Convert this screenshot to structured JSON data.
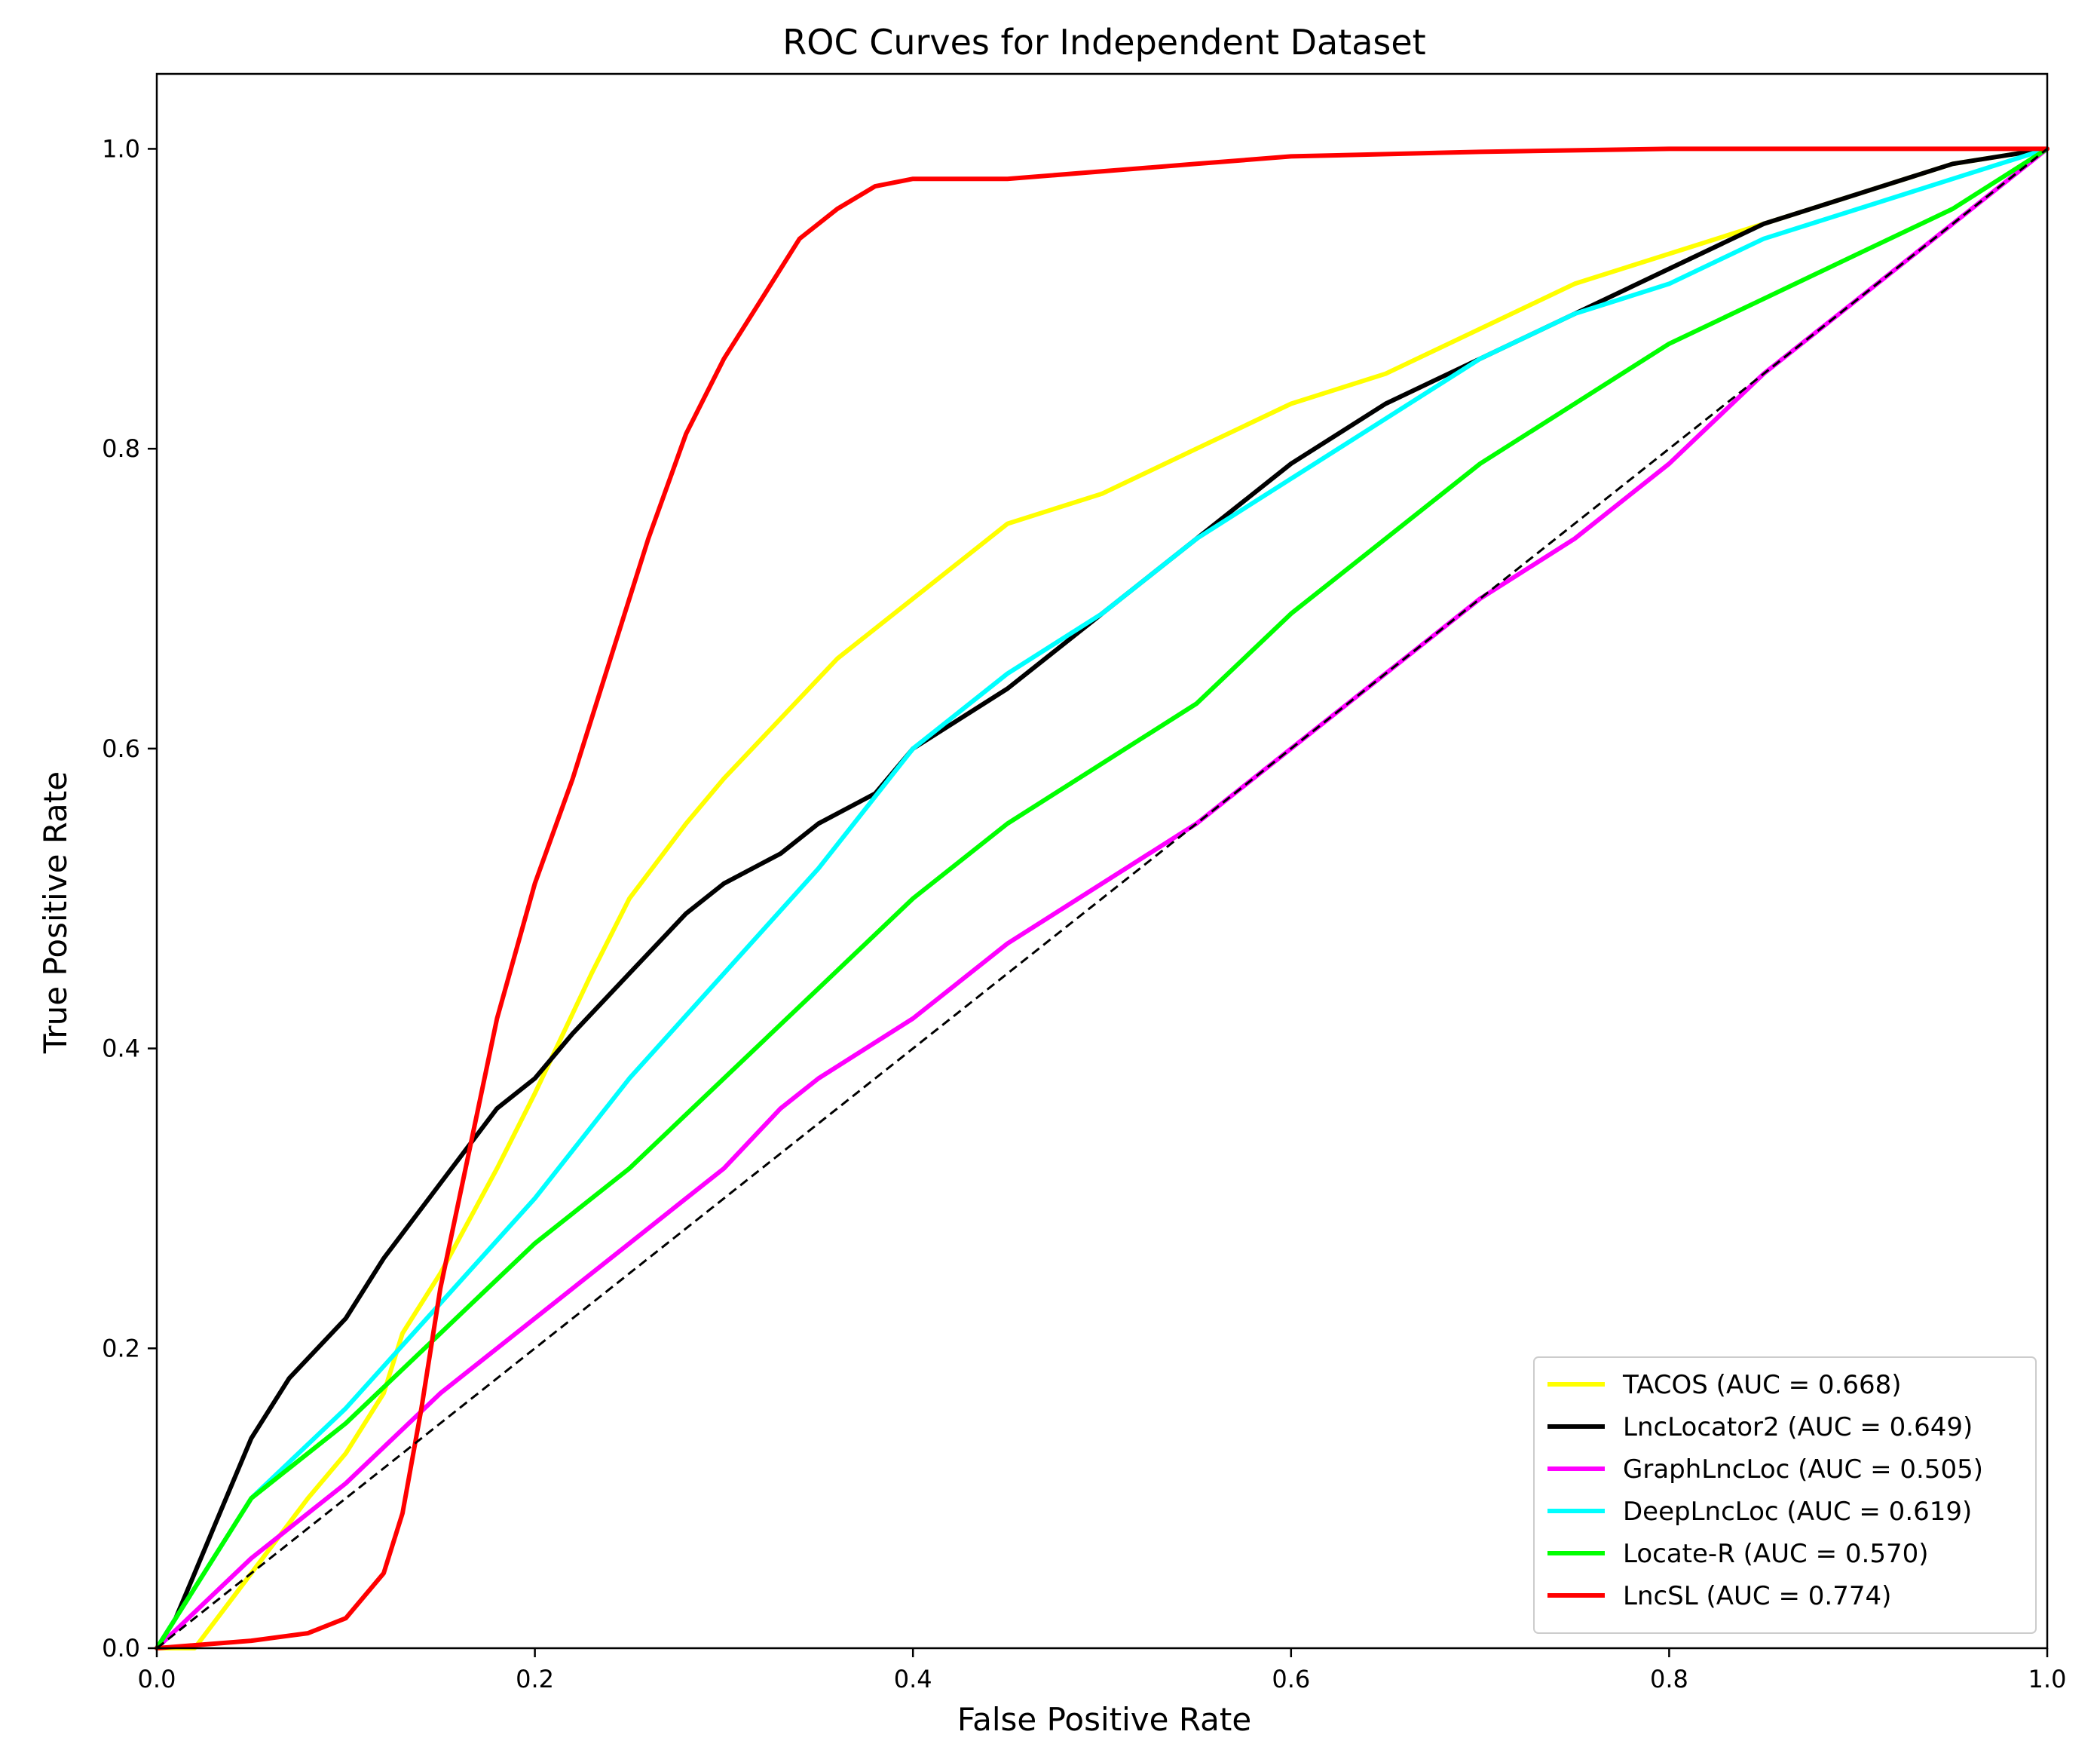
{
  "chart_data": {
    "type": "line",
    "title": "ROC Curves for Independent Dataset",
    "xlabel": "False Positive Rate",
    "ylabel": "True Positive Rate",
    "xlim": [
      0.0,
      1.0
    ],
    "ylim": [
      0.0,
      1.05
    ],
    "xticks": [
      "0.0",
      "0.2",
      "0.4",
      "0.6",
      "0.8",
      "1.0"
    ],
    "yticks": [
      "0.0",
      "0.2",
      "0.4",
      "0.6",
      "0.8",
      "1.0"
    ],
    "grid": false,
    "legend_position": "lower-right",
    "diagonal_reference": true,
    "series": [
      {
        "name": "TACOS (AUC = 0.668)",
        "color": "#ffff00",
        "x": [
          0,
          0.02,
          0.05,
          0.08,
          0.1,
          0.12,
          0.13,
          0.15,
          0.18,
          0.2,
          0.23,
          0.25,
          0.28,
          0.3,
          0.33,
          0.36,
          0.4,
          0.45,
          0.5,
          0.55,
          0.6,
          0.65,
          0.7,
          0.75,
          0.8,
          0.85,
          0.9,
          0.95,
          1.0
        ],
        "y": [
          0,
          0,
          0.05,
          0.1,
          0.13,
          0.17,
          0.21,
          0.25,
          0.32,
          0.37,
          0.45,
          0.5,
          0.55,
          0.58,
          0.62,
          0.66,
          0.7,
          0.75,
          0.77,
          0.8,
          0.83,
          0.85,
          0.88,
          0.91,
          0.93,
          0.95,
          0.97,
          0.99,
          1.0
        ]
      },
      {
        "name": "LncLocator2 (AUC = 0.649)",
        "color": "#000000",
        "x": [
          0,
          0.01,
          0.02,
          0.03,
          0.05,
          0.07,
          0.1,
          0.12,
          0.15,
          0.18,
          0.2,
          0.22,
          0.25,
          0.28,
          0.3,
          0.33,
          0.35,
          0.38,
          0.4,
          0.45,
          0.5,
          0.55,
          0.6,
          0.65,
          0.7,
          0.75,
          0.8,
          0.85,
          0.9,
          0.95,
          1.0
        ],
        "y": [
          0,
          0.02,
          0.05,
          0.08,
          0.14,
          0.18,
          0.22,
          0.26,
          0.31,
          0.36,
          0.38,
          0.41,
          0.45,
          0.49,
          0.51,
          0.53,
          0.55,
          0.57,
          0.6,
          0.64,
          0.69,
          0.74,
          0.79,
          0.83,
          0.86,
          0.89,
          0.92,
          0.95,
          0.97,
          0.99,
          1.0
        ]
      },
      {
        "name": "GraphLncLoc (AUC = 0.505)",
        "color": "#ff00ff",
        "x": [
          0,
          0.05,
          0.1,
          0.15,
          0.2,
          0.25,
          0.28,
          0.3,
          0.33,
          0.35,
          0.4,
          0.45,
          0.5,
          0.55,
          0.6,
          0.65,
          0.7,
          0.75,
          0.8,
          0.85,
          0.9,
          0.95,
          1.0
        ],
        "y": [
          0,
          0.06,
          0.11,
          0.17,
          0.22,
          0.27,
          0.3,
          0.32,
          0.36,
          0.38,
          0.42,
          0.47,
          0.51,
          0.55,
          0.6,
          0.65,
          0.7,
          0.74,
          0.79,
          0.85,
          0.9,
          0.95,
          1.0
        ]
      },
      {
        "name": "DeepLncLoc (AUC = 0.619)",
        "color": "#00ffff",
        "x": [
          0,
          0.05,
          0.1,
          0.15,
          0.2,
          0.25,
          0.3,
          0.35,
          0.4,
          0.45,
          0.5,
          0.55,
          0.6,
          0.65,
          0.7,
          0.75,
          0.8,
          0.85,
          0.9,
          0.95,
          1.0
        ],
        "y": [
          0,
          0.1,
          0.16,
          0.23,
          0.3,
          0.38,
          0.45,
          0.52,
          0.6,
          0.65,
          0.69,
          0.74,
          0.78,
          0.82,
          0.86,
          0.89,
          0.91,
          0.94,
          0.96,
          0.98,
          1.0
        ]
      },
      {
        "name": "Locate-R (AUC = 0.570)",
        "color": "#00ff00",
        "x": [
          0,
          0.05,
          0.1,
          0.15,
          0.2,
          0.25,
          0.3,
          0.35,
          0.4,
          0.45,
          0.5,
          0.55,
          0.6,
          0.65,
          0.7,
          0.75,
          0.8,
          0.85,
          0.9,
          0.95,
          1.0
        ],
        "y": [
          0,
          0.1,
          0.15,
          0.21,
          0.27,
          0.32,
          0.38,
          0.44,
          0.5,
          0.55,
          0.59,
          0.63,
          0.69,
          0.74,
          0.79,
          0.83,
          0.87,
          0.9,
          0.93,
          0.96,
          1.0
        ]
      },
      {
        "name": "LncSL (AUC = 0.774)",
        "color": "#ff0000",
        "x": [
          0,
          0.05,
          0.08,
          0.1,
          0.12,
          0.13,
          0.14,
          0.15,
          0.16,
          0.17,
          0.18,
          0.2,
          0.22,
          0.24,
          0.26,
          0.28,
          0.3,
          0.32,
          0.34,
          0.36,
          0.38,
          0.4,
          0.45,
          0.5,
          0.55,
          0.6,
          0.7,
          0.8,
          0.9,
          1.0
        ],
        "y": [
          0,
          0.005,
          0.01,
          0.02,
          0.05,
          0.09,
          0.16,
          0.24,
          0.3,
          0.36,
          0.42,
          0.51,
          0.58,
          0.66,
          0.74,
          0.81,
          0.86,
          0.9,
          0.94,
          0.96,
          0.975,
          0.98,
          0.98,
          0.985,
          0.99,
          0.995,
          0.998,
          1.0,
          1.0,
          1.0
        ]
      }
    ]
  }
}
